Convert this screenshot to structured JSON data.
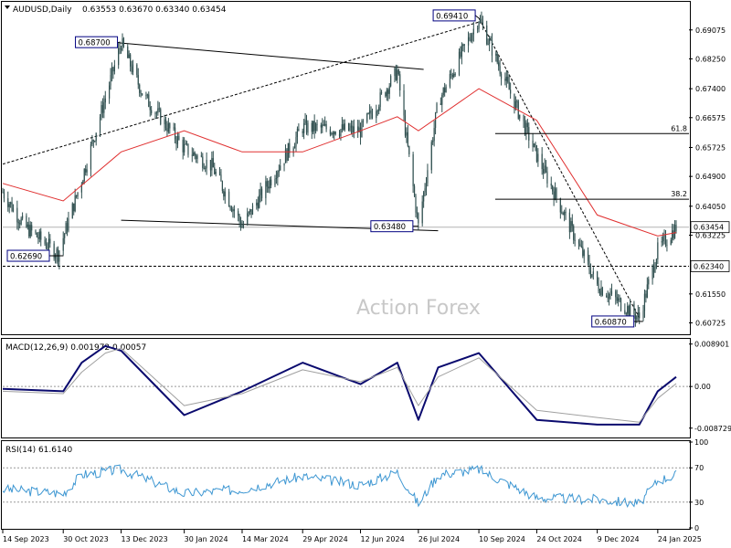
{
  "header": {
    "symbol": "AUDUSD,Daily",
    "ohlc": "0.63553 0.63670 0.63340 0.63454"
  },
  "watermark": "Action Forex",
  "colors": {
    "background": "#ffffff",
    "border": "#000000",
    "candle": "#2f4f4f",
    "ma": "#e03030",
    "macd_main": "#0a0a6e",
    "macd_signal": "#a0a0a0",
    "rsi": "#3c96d2",
    "label_box_border": "#000080",
    "watermark": "#c8c8c8"
  },
  "chart_data": [
    {
      "type": "candlestick",
      "panel": "price",
      "ylim": [
        0.604,
        0.6985
      ],
      "price_axis_ticks": [
        "0.69075",
        "0.68250",
        "0.67400",
        "0.66575",
        "0.65725",
        "0.64900",
        "0.64050",
        "0.63225",
        "0.61550",
        "0.60725"
      ],
      "date_labels": [
        "14 Sep 2023",
        "30 Oct 2023",
        "13 Dec 2023",
        "30 Jan 2024",
        "14 Mar 2024",
        "29 Apr 2024",
        "12 Jun 2024",
        "26 Jul 2024",
        "10 Sep 2024",
        "24 Oct 2024",
        "9 Dec 2024",
        "24 Jan 2025"
      ],
      "price_path": [
        [
          "14 Sep 2023",
          0.6445
        ],
        [
          "30 Sep 2023",
          0.635
        ],
        [
          "26 Oct 2023",
          0.6269
        ],
        [
          "13 Nov 2023",
          0.648
        ],
        [
          "13 Dec 2023",
          0.687
        ],
        [
          "30 Dec 2023",
          0.672
        ],
        [
          "30 Jan 2024",
          0.657
        ],
        [
          "20 Feb 2024",
          0.652
        ],
        [
          "14 Mar 2024",
          0.6348
        ],
        [
          "29 Apr 2024",
          0.663
        ],
        [
          "12 Jun 2024",
          0.662
        ],
        [
          "10 Jul 2024",
          0.679
        ],
        [
          "26 Jul 2024",
          0.6348
        ],
        [
          "10 Aug 2024",
          0.67
        ],
        [
          "10 Sep 2024",
          0.6941
        ],
        [
          "24 Oct 2024",
          0.655
        ],
        [
          "9 Dec 2024",
          0.618
        ],
        [
          "10 Jan 2025",
          0.6087
        ],
        [
          "24 Jan 2025",
          0.628
        ],
        [
          "7 Feb 2025",
          0.6345
        ]
      ],
      "moving_average_path": [
        [
          "14 Sep 2023",
          0.647
        ],
        [
          "30 Oct 2023",
          0.642
        ],
        [
          "13 Dec 2023",
          0.656
        ],
        [
          "30 Jan 2024",
          0.662
        ],
        [
          "14 Mar 2024",
          0.656
        ],
        [
          "29 Apr 2024",
          0.656
        ],
        [
          "12 Jun 2024",
          0.662
        ],
        [
          "10 Jul 2024",
          0.666
        ],
        [
          "26 Jul 2024",
          0.662
        ],
        [
          "10 Sep 2024",
          0.674
        ],
        [
          "24 Oct 2024",
          0.665
        ],
        [
          "9 Dec 2024",
          0.638
        ],
        [
          "24 Jan 2025",
          0.632
        ],
        [
          "7 Feb 2025",
          0.633
        ]
      ],
      "current_price": {
        "value": 0.63454,
        "label": "0.63454"
      },
      "horizontal_line": {
        "value": 0.6234,
        "label": "0.62340"
      },
      "fibonacci_levels": [
        {
          "label": "61.8",
          "value": 0.6612
        },
        {
          "label": "38.2",
          "value": 0.6425
        }
      ],
      "price_labels": [
        {
          "label": "0.68700",
          "date": "13 Dec 2023",
          "value": 0.687
        },
        {
          "label": "0.69410",
          "date": "10 Sep 2024",
          "value": 0.6941
        },
        {
          "label": "0.62690",
          "date": "26 Oct 2023",
          "value": 0.6269
        },
        {
          "label": "0.63480",
          "date": "26 Jul 2024",
          "value": 0.6348
        },
        {
          "label": "0.60870",
          "date": "10 Jan 2025",
          "value": 0.6087
        }
      ],
      "trend_lines": [
        {
          "style": "dotted",
          "from": [
            "14 Sep 2023",
            0.6525
          ],
          "to": [
            "10 Sep 2024",
            0.693
          ]
        },
        {
          "style": "dotted",
          "from": [
            "10 Sep 2024",
            0.6941
          ],
          "to": [
            "10 Jan 2025",
            0.6087
          ]
        },
        {
          "style": "solid",
          "from": [
            "13 Dec 2023",
            0.687
          ],
          "to": [
            "30 Jul 2024",
            0.6795
          ]
        },
        {
          "style": "solid",
          "from": [
            "13 Dec 2023",
            0.6365
          ],
          "to": [
            "10 Aug 2024",
            0.6335
          ]
        }
      ]
    },
    {
      "type": "line",
      "panel": "macd",
      "title": "MACD(12,26,9) 0.001972 0.00057",
      "axis_ticks": [
        "0.008901",
        "0.00",
        "-0.008729"
      ],
      "ylim": [
        -0.0105,
        0.0098
      ],
      "zero_line": 0,
      "series": [
        {
          "role": "main",
          "points": [
            [
              "14 Sep 2023",
              -0.0005
            ],
            [
              "30 Oct 2023",
              -0.001
            ],
            [
              "13 Nov 2023",
              0.005
            ],
            [
              "1 Dec 2023",
              0.0085
            ],
            [
              "13 Dec 2023",
              0.0075
            ],
            [
              "30 Jan 2024",
              -0.006
            ],
            [
              "14 Mar 2024",
              -0.001
            ],
            [
              "29 Apr 2024",
              0.005
            ],
            [
              "12 Jun 2024",
              0.0005
            ],
            [
              "10 Jul 2024",
              0.005
            ],
            [
              "26 Jul 2024",
              -0.007
            ],
            [
              "10 Aug 2024",
              0.004
            ],
            [
              "10 Sep 2024",
              0.007
            ],
            [
              "24 Oct 2024",
              -0.007
            ],
            [
              "9 Dec 2024",
              -0.008
            ],
            [
              "10 Jan 2025",
              -0.008
            ],
            [
              "24 Jan 2025",
              -0.001
            ],
            [
              "7 Feb 2025",
              0.002
            ]
          ]
        },
        {
          "role": "signal",
          "points": [
            [
              "14 Sep 2023",
              -0.001
            ],
            [
              "30 Oct 2023",
              -0.0015
            ],
            [
              "13 Nov 2023",
              0.003
            ],
            [
              "1 Dec 2023",
              0.007
            ],
            [
              "13 Dec 2023",
              0.008
            ],
            [
              "30 Jan 2024",
              -0.004
            ],
            [
              "14 Mar 2024",
              -0.0015
            ],
            [
              "29 Apr 2024",
              0.0035
            ],
            [
              "12 Jun 2024",
              0.001
            ],
            [
              "10 Jul 2024",
              0.004
            ],
            [
              "26 Jul 2024",
              -0.004
            ],
            [
              "10 Aug 2024",
              0.002
            ],
            [
              "10 Sep 2024",
              0.006
            ],
            [
              "24 Oct 2024",
              -0.005
            ],
            [
              "9 Dec 2024",
              -0.0065
            ],
            [
              "10 Jan 2025",
              -0.0075
            ],
            [
              "24 Jan 2025",
              -0.0025
            ],
            [
              "7 Feb 2025",
              0.0006
            ]
          ]
        }
      ]
    },
    {
      "type": "line",
      "panel": "rsi",
      "title": "RSI(14) 61.6140",
      "axis_ticks": [
        "100",
        "70",
        "30",
        "0"
      ],
      "ylim": [
        0,
        100
      ],
      "levels": [
        70,
        30
      ],
      "series": [
        {
          "role": "rsi",
          "points": [
            [
              "14 Sep 2023",
              45
            ],
            [
              "30 Oct 2023",
              40
            ],
            [
              "13 Nov 2023",
              62
            ],
            [
              "13 Dec 2023",
              68
            ],
            [
              "30 Jan 2024",
              40
            ],
            [
              "14 Mar 2024",
              45
            ],
            [
              "29 Apr 2024",
              60
            ],
            [
              "12 Jun 2024",
              50
            ],
            [
              "10 Jul 2024",
              65
            ],
            [
              "26 Jul 2024",
              28
            ],
            [
              "10 Aug 2024",
              62
            ],
            [
              "10 Sep 2024",
              68
            ],
            [
              "24 Oct 2024",
              35
            ],
            [
              "9 Dec 2024",
              33
            ],
            [
              "10 Jan 2025",
              28
            ],
            [
              "24 Jan 2025",
              55
            ],
            [
              "7 Feb 2025",
              62
            ]
          ]
        }
      ]
    }
  ]
}
